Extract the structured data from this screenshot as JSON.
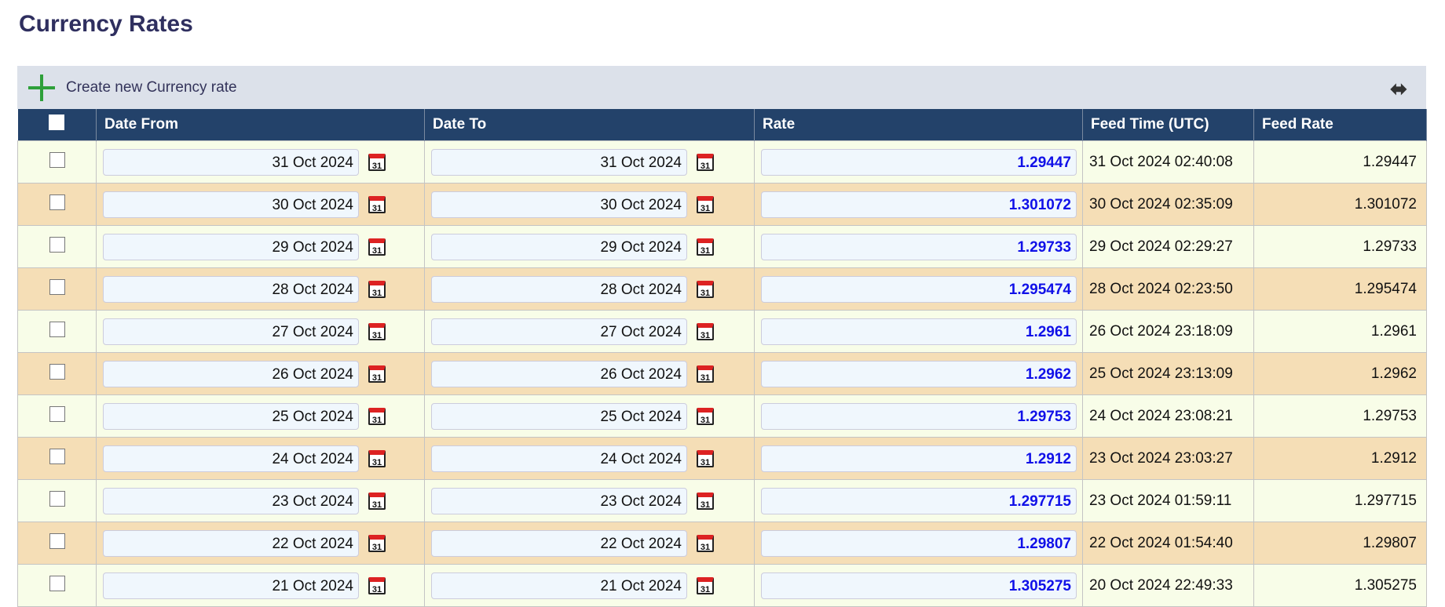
{
  "page": {
    "title": "Currency Rates"
  },
  "toolbar": {
    "create_label": "Create new Currency rate",
    "create_icon": "plus-icon",
    "expand_icon": "horizontal-arrows-icon"
  },
  "colors": {
    "header": "#23426a",
    "row_odd": "#f8fde8",
    "row_even": "#f5deb6",
    "rate_text": "#1010e8",
    "add": "#2ea03a"
  },
  "table": {
    "columns": [
      "Date From",
      "Date To",
      "Rate",
      "Feed Time (UTC)",
      "Feed Rate"
    ],
    "rows": [
      {
        "date_from": "31 Oct 2024",
        "date_to": "31 Oct 2024",
        "rate": "1.29447",
        "feed_time": "31 Oct 2024 02:40:08",
        "feed_rate": "1.29447"
      },
      {
        "date_from": "30 Oct 2024",
        "date_to": "30 Oct 2024",
        "rate": "1.301072",
        "feed_time": "30 Oct 2024 02:35:09",
        "feed_rate": "1.301072"
      },
      {
        "date_from": "29 Oct 2024",
        "date_to": "29 Oct 2024",
        "rate": "1.29733",
        "feed_time": "29 Oct 2024 02:29:27",
        "feed_rate": "1.29733"
      },
      {
        "date_from": "28 Oct 2024",
        "date_to": "28 Oct 2024",
        "rate": "1.295474",
        "feed_time": "28 Oct 2024 02:23:50",
        "feed_rate": "1.295474"
      },
      {
        "date_from": "27 Oct 2024",
        "date_to": "27 Oct 2024",
        "rate": "1.2961",
        "feed_time": "26 Oct 2024 23:18:09",
        "feed_rate": "1.2961"
      },
      {
        "date_from": "26 Oct 2024",
        "date_to": "26 Oct 2024",
        "rate": "1.2962",
        "feed_time": "25 Oct 2024 23:13:09",
        "feed_rate": "1.2962"
      },
      {
        "date_from": "25 Oct 2024",
        "date_to": "25 Oct 2024",
        "rate": "1.29753",
        "feed_time": "24 Oct 2024 23:08:21",
        "feed_rate": "1.29753"
      },
      {
        "date_from": "24 Oct 2024",
        "date_to": "24 Oct 2024",
        "rate": "1.2912",
        "feed_time": "23 Oct 2024 23:03:27",
        "feed_rate": "1.2912"
      },
      {
        "date_from": "23 Oct 2024",
        "date_to": "23 Oct 2024",
        "rate": "1.297715",
        "feed_time": "23 Oct 2024 01:59:11",
        "feed_rate": "1.297715"
      },
      {
        "date_from": "22 Oct 2024",
        "date_to": "22 Oct 2024",
        "rate": "1.29807",
        "feed_time": "22 Oct 2024 01:54:40",
        "feed_rate": "1.29807"
      },
      {
        "date_from": "21 Oct 2024",
        "date_to": "21 Oct 2024",
        "rate": "1.305275",
        "feed_time": "20 Oct 2024 22:49:33",
        "feed_rate": "1.305275"
      }
    ],
    "calendar_icon_text": "31"
  }
}
